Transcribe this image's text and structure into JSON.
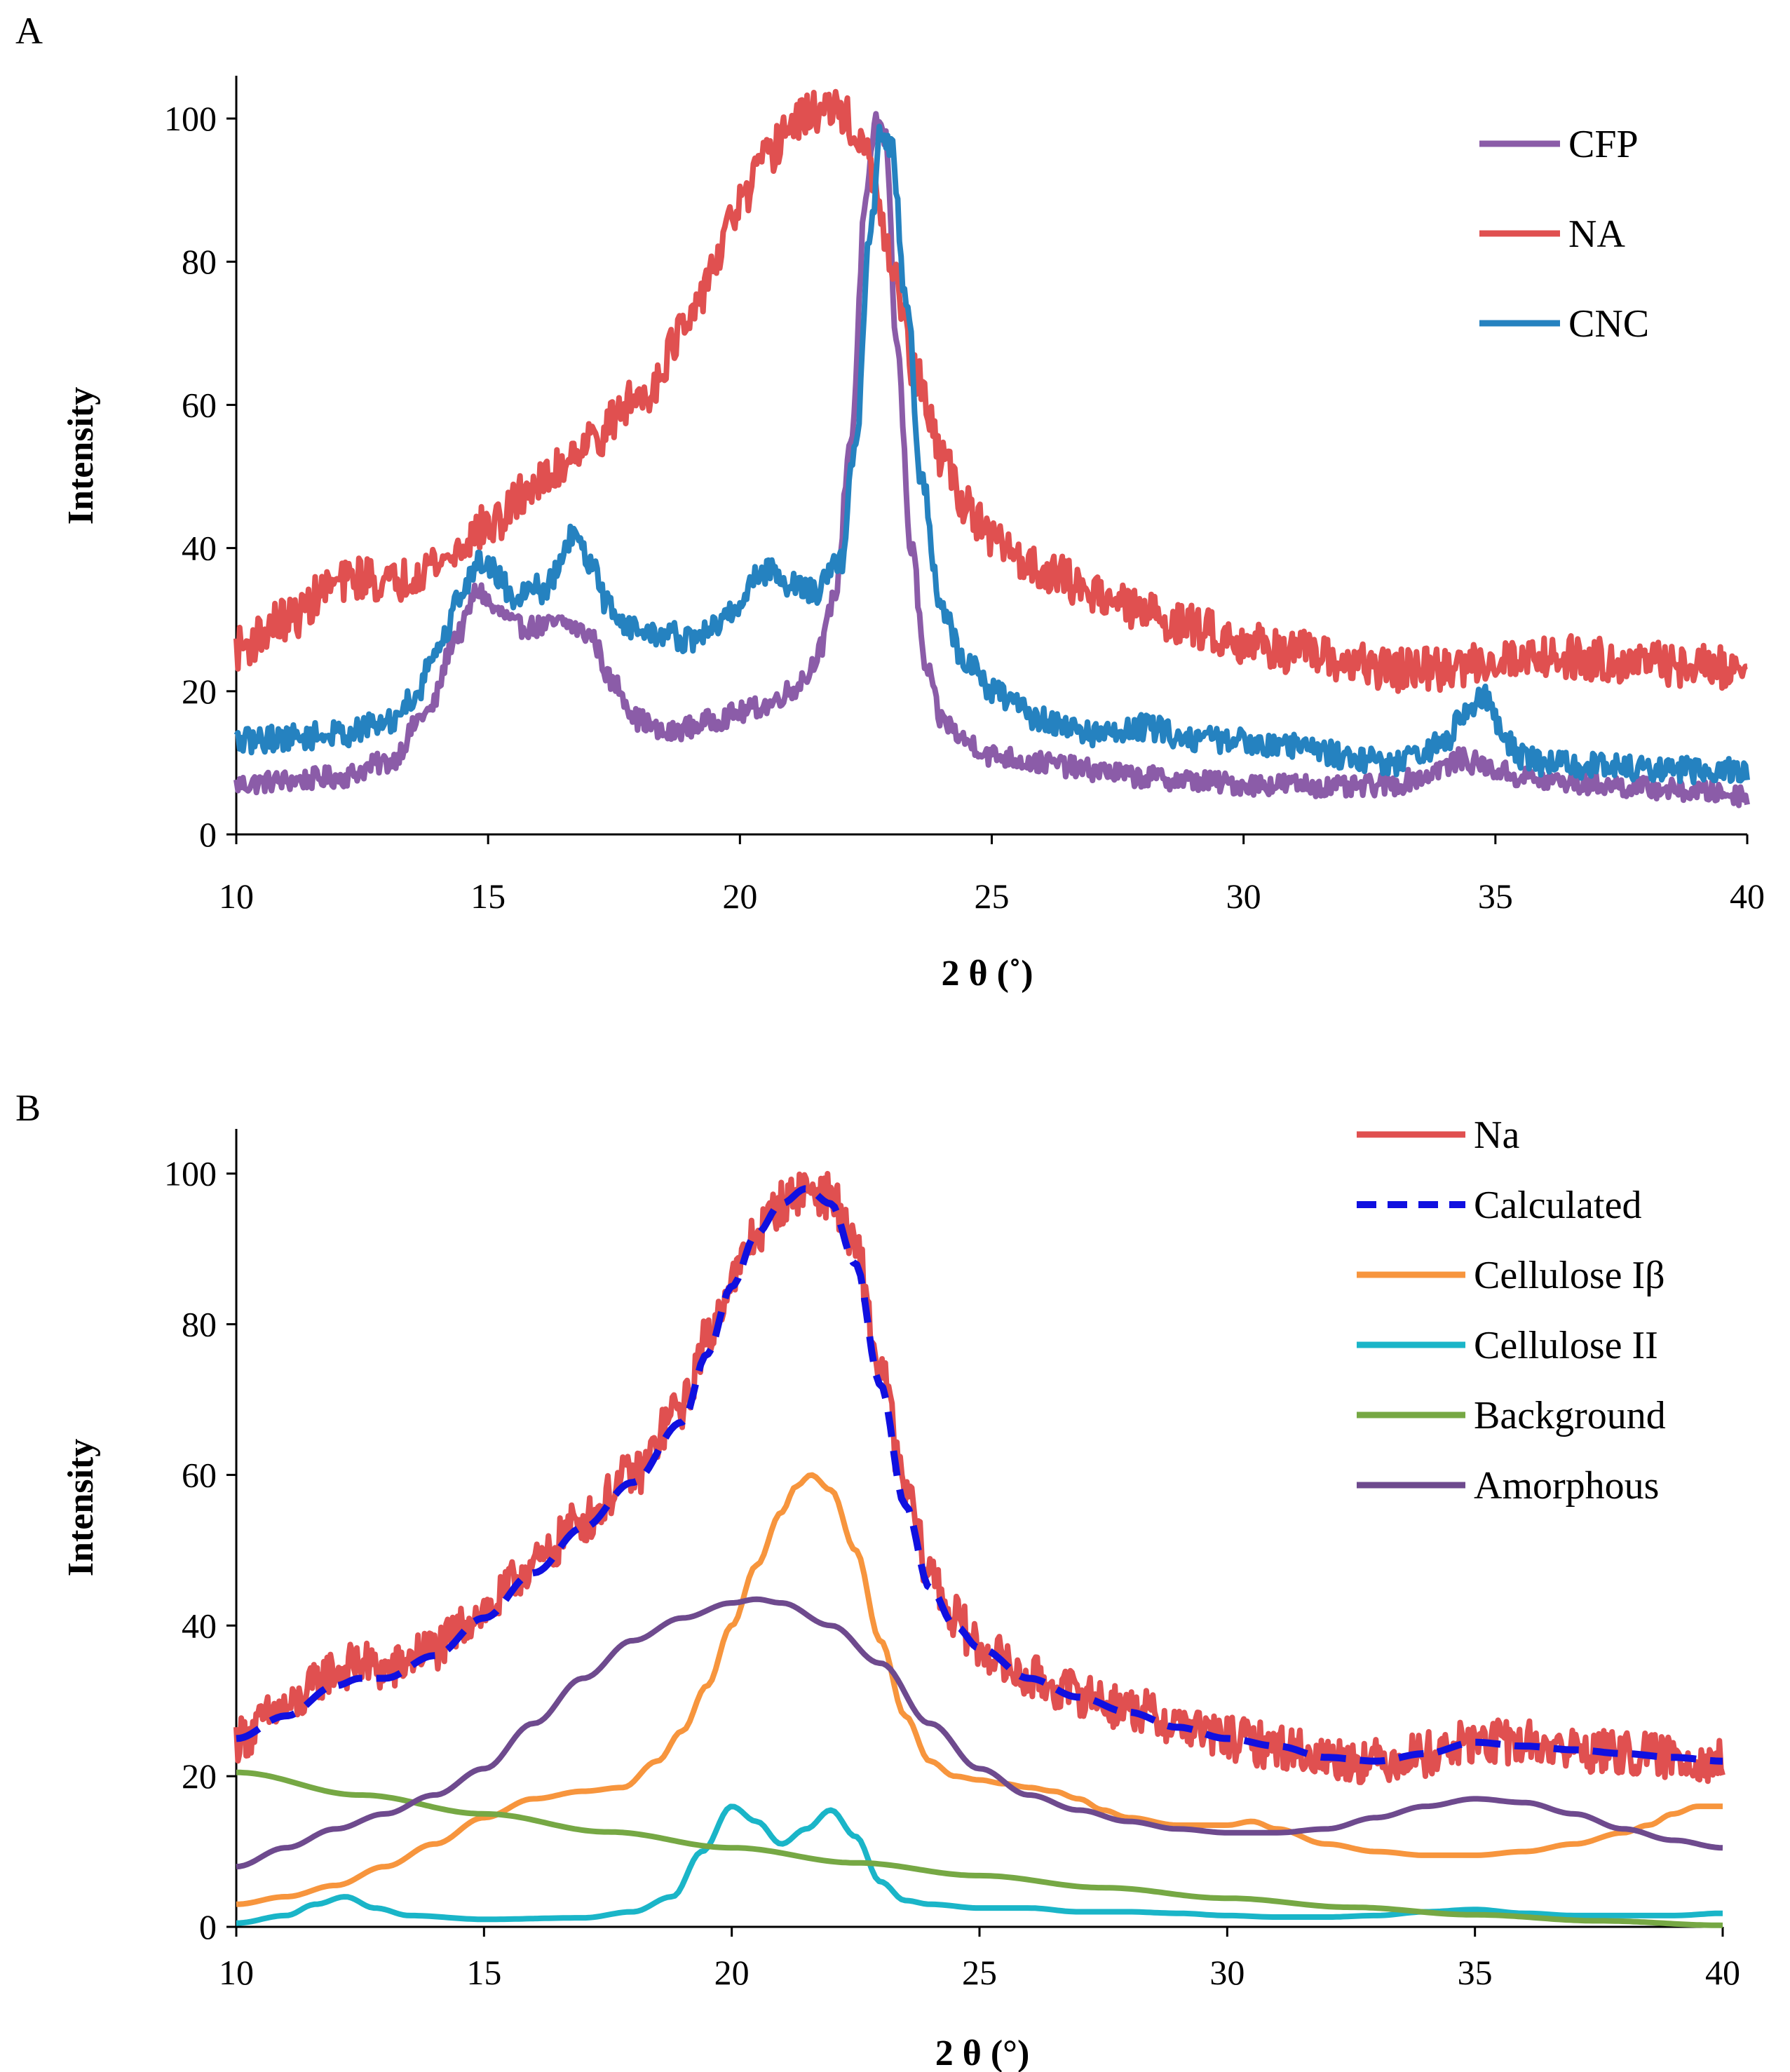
{
  "chart_data": [
    {
      "panel": "A",
      "type": "line",
      "xlabel": "2 θ (˚)",
      "ylabel": "Intensity",
      "xlim": [
        10,
        40
      ],
      "ylim": [
        0,
        105
      ],
      "xticks": [
        10,
        15,
        20,
        25,
        30,
        35,
        40
      ],
      "yticks": [
        0,
        20,
        40,
        60,
        80,
        100
      ],
      "grid": false,
      "legend": "top-right",
      "series": [
        {
          "name": "CFP",
          "color": "#8B5CA8",
          "noise": 1.5,
          "x": [
            10,
            11,
            12,
            13,
            13.8,
            14.4,
            14.8,
            15.2,
            15.6,
            16.0,
            16.5,
            17.0,
            17.5,
            18.0,
            18.5,
            19.0,
            19.5,
            20.0,
            20.5,
            21.0,
            21.3,
            21.6,
            21.9,
            22.2,
            22.5,
            22.7,
            22.9,
            23.1,
            23.4,
            23.7,
            24.0,
            24.5,
            25,
            26,
            27,
            28,
            29,
            30,
            31,
            32,
            33,
            33.5,
            34,
            34.3,
            34.6,
            35,
            35.5,
            36,
            37,
            38,
            39,
            40
          ],
          "y": [
            7,
            7.5,
            8,
            10,
            17,
            28,
            34,
            31,
            29,
            29,
            29.5,
            28,
            21,
            16,
            14,
            15,
            16,
            17,
            18,
            20,
            22,
            26,
            34,
            55,
            88,
            100,
            97,
            70,
            40,
            23,
            16,
            13,
            11,
            10,
            9,
            8,
            7.5,
            7,
            7,
            6.5,
            7,
            8,
            9.5,
            10.5,
            10,
            9,
            8,
            7.5,
            7,
            6.5,
            6,
            5.5
          ]
        },
        {
          "name": "NA",
          "color": "#E05050",
          "noise": 3.0,
          "x": [
            10,
            11,
            12,
            12.5,
            13,
            14,
            15,
            16,
            17,
            18,
            19,
            19.5,
            20,
            20.5,
            21,
            21.5,
            22,
            22.5,
            23,
            23.5,
            24,
            24.5,
            25,
            26,
            27,
            28,
            29,
            30,
            31,
            32,
            33,
            34,
            35,
            36,
            37,
            38,
            39,
            40
          ],
          "y": [
            26,
            30,
            35,
            36,
            35,
            38,
            43,
            49,
            55,
            61,
            71,
            80,
            88,
            94,
            99,
            101,
            101,
            95,
            80,
            64,
            53,
            46,
            41,
            37,
            34,
            31,
            29,
            27,
            25.5,
            24,
            23,
            23,
            24.5,
            25,
            24.5,
            24,
            23.5,
            23
          ]
        },
        {
          "name": "CNC",
          "color": "#2582C0",
          "noise": 1.8,
          "x": [
            10,
            11,
            12,
            13,
            13.5,
            14,
            14.5,
            14.8,
            15.0,
            15.2,
            15.5,
            15.8,
            16.1,
            16.4,
            16.7,
            17.0,
            17.4,
            17.8,
            18.2,
            18.6,
            19.0,
            19.5,
            20.0,
            20.3,
            20.6,
            21.0,
            21.5,
            22.0,
            22.3,
            22.6,
            22.8,
            23.0,
            23.3,
            23.6,
            24.0,
            24.5,
            25,
            26,
            27,
            27.8,
            28,
            29,
            30,
            31,
            32,
            32.5,
            33,
            33.5,
            34,
            34.4,
            34.8,
            35.2,
            35.5,
            36,
            37,
            38,
            39,
            40
          ],
          "y": [
            13,
            13.5,
            14,
            15.5,
            19,
            26,
            34,
            38,
            38,
            36,
            33,
            35,
            34,
            37,
            42,
            38,
            32,
            29,
            28,
            28,
            27,
            29,
            32,
            36,
            37,
            35,
            34,
            38,
            55,
            85,
            98,
            96,
            75,
            50,
            31,
            24,
            20,
            16,
            14,
            14.5,
            15,
            13.5,
            13,
            12.5,
            11,
            10.5,
            10,
            11,
            13,
            17,
            19,
            13,
            11,
            10,
            9.5,
            9,
            9,
            9
          ]
        }
      ]
    },
    {
      "panel": "B",
      "type": "line",
      "xlabel": "2 θ (°)",
      "ylabel": "Intensity",
      "xlim": [
        10,
        40
      ],
      "ylim": [
        0,
        105
      ],
      "xticks": [
        10,
        15,
        20,
        25,
        30,
        35,
        40
      ],
      "yticks": [
        0,
        20,
        40,
        60,
        80,
        100
      ],
      "grid": false,
      "legend": "top-right",
      "series": [
        {
          "name": "Na",
          "color": "#E05050",
          "noise": 3.0,
          "x": [
            10,
            11,
            12,
            12.5,
            13,
            14,
            15,
            16,
            17,
            18,
            19,
            19.5,
            20,
            20.5,
            21,
            21.5,
            22,
            22.5,
            23,
            23.5,
            24,
            24.5,
            25,
            26,
            27,
            28,
            29,
            30,
            31,
            32,
            33,
            34,
            35,
            36,
            37,
            38,
            39,
            40
          ],
          "y": [
            25,
            29,
            34,
            35,
            34,
            37,
            42,
            48,
            54,
            60,
            69,
            78,
            86,
            92,
            96,
            98,
            97,
            90,
            74,
            58,
            47,
            41,
            37,
            33,
            31,
            29,
            27,
            25,
            24,
            22.5,
            22,
            23,
            24.5,
            24.5,
            23.5,
            23,
            22.5,
            22
          ]
        },
        {
          "name": "Calculated",
          "color": "#1010E0",
          "dashed": true,
          "x": [
            10,
            11,
            12,
            12.5,
            13,
            14,
            15,
            16,
            17,
            18,
            19,
            19.5,
            20,
            20.5,
            21,
            21.5,
            22,
            22.5,
            23,
            23.5,
            24,
            24.5,
            25,
            26,
            27,
            28,
            29,
            30,
            31,
            32,
            33,
            34,
            35,
            36,
            37,
            38,
            39,
            40
          ],
          "y": [
            25,
            28,
            32,
            33,
            33,
            36,
            41,
            47,
            53,
            59,
            67,
            76,
            85,
            92,
            96,
            98,
            96,
            88,
            72,
            56,
            45,
            40,
            37,
            33,
            30.5,
            28.5,
            26.5,
            25,
            24,
            22.5,
            22,
            23,
            24.5,
            24,
            23.5,
            23,
            22.5,
            22
          ]
        },
        {
          "name": "Cellulose Iβ",
          "color": "#F7953D",
          "x": [
            10,
            11,
            12,
            13,
            14,
            15,
            16,
            17,
            17.8,
            18.5,
            19,
            19.5,
            20,
            20.5,
            21,
            21.3,
            21.6,
            22,
            22.5,
            23,
            23.5,
            24,
            24.5,
            25,
            25.5,
            26,
            26.5,
            27,
            27.5,
            28,
            29,
            30,
            30.5,
            31,
            32,
            33,
            34,
            35,
            36,
            37,
            38,
            38.5,
            39,
            39.5,
            40
          ],
          "y": [
            3,
            4,
            5.5,
            8,
            11,
            14.5,
            17,
            18,
            18.5,
            22,
            26,
            32,
            40,
            48,
            55,
            58.5,
            60,
            58,
            50,
            38,
            28,
            22,
            20,
            19.5,
            19,
            18.5,
            18,
            17,
            15.5,
            14.5,
            13.5,
            13.5,
            14,
            13,
            11,
            10,
            9.5,
            9.5,
            10,
            11,
            12.5,
            13.5,
            15,
            16,
            16
          ]
        },
        {
          "name": "Cellulose II",
          "color": "#1AB5C8",
          "x": [
            10,
            11,
            11.6,
            12.2,
            12.8,
            13.5,
            15,
            17,
            18,
            18.8,
            19.4,
            20,
            20.5,
            21,
            21.5,
            22,
            22.5,
            23,
            23.5,
            24,
            25,
            26,
            27,
            28,
            29,
            30,
            31,
            32,
            33,
            34,
            35,
            36,
            37,
            38,
            39,
            40
          ],
          "y": [
            0.5,
            1.5,
            3,
            4,
            2.5,
            1.5,
            1,
            1.2,
            2,
            4,
            10,
            16,
            14,
            11,
            13,
            15.5,
            12,
            6,
            3.5,
            3,
            2.5,
            2.5,
            2,
            2,
            1.8,
            1.5,
            1.3,
            1.3,
            1.5,
            2,
            2.3,
            1.8,
            1.5,
            1.5,
            1.5,
            1.8
          ]
        },
        {
          "name": "Background",
          "color": "#76A844",
          "x": [
            10,
            12.5,
            15,
            17.5,
            20,
            22.5,
            25,
            27.5,
            30,
            32.5,
            35,
            37.5,
            40
          ],
          "y": [
            20.5,
            17.5,
            15,
            12.6,
            10.5,
            8.5,
            6.8,
            5.2,
            3.8,
            2.6,
            1.6,
            0.8,
            0.2
          ]
        },
        {
          "name": "Amorphous",
          "color": "#6E4A8E",
          "x": [
            10,
            11,
            12,
            13,
            14,
            15,
            16,
            17,
            18,
            19,
            20,
            20.5,
            21,
            22,
            23,
            24,
            25,
            26,
            27,
            28,
            29,
            30,
            31,
            32,
            33,
            34,
            35,
            36,
            37,
            38,
            39,
            40
          ],
          "y": [
            8,
            10.5,
            13,
            15,
            17.5,
            21,
            27,
            33,
            38,
            41,
            43,
            43.5,
            43,
            40,
            35,
            27,
            21,
            17.5,
            15.5,
            14,
            13,
            12.5,
            12.5,
            13,
            14.5,
            16,
            17,
            16.5,
            15,
            13,
            11.5,
            10.5
          ]
        }
      ]
    }
  ],
  "panels": [
    {
      "label": "A",
      "legend": [
        "CFP",
        "NA",
        "CNC"
      ]
    },
    {
      "label": "B",
      "legend": [
        "Na",
        "Calculated",
        "Cellulose Iβ",
        "Cellulose II",
        "Background",
        "Amorphous"
      ]
    }
  ]
}
